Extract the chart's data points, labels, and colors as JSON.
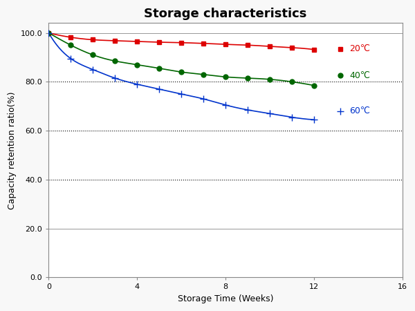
{
  "title": "Storage characteristics",
  "xlabel": "Storage Time (Weeks)",
  "ylabel": "Capacity retention ratio(%)",
  "xlim": [
    0,
    16
  ],
  "ylim": [
    0,
    104
  ],
  "xticks": [
    0,
    4,
    8,
    12,
    16
  ],
  "yticks": [
    0.0,
    20.0,
    40.0,
    60.0,
    80.0,
    100.0
  ],
  "series": [
    {
      "label": "20℃",
      "color": "#dd0000",
      "marker": "s",
      "markersize": 5,
      "x": [
        0,
        1,
        2,
        3,
        4,
        5,
        6,
        7,
        8,
        9,
        10,
        11,
        12
      ],
      "y": [
        100,
        98.2,
        97.2,
        96.8,
        96.5,
        96.2,
        96.0,
        95.7,
        95.3,
        95.0,
        94.5,
        94.0,
        93.2
      ]
    },
    {
      "label": "40℃",
      "color": "#006600",
      "marker": "o",
      "markersize": 5,
      "x": [
        0,
        1,
        2,
        3,
        4,
        5,
        6,
        7,
        8,
        9,
        10,
        11,
        12
      ],
      "y": [
        100,
        95.0,
        91.0,
        88.5,
        87.0,
        85.5,
        84.0,
        83.0,
        82.0,
        81.5,
        81.0,
        80.0,
        78.5
      ]
    },
    {
      "label": "60℃",
      "color": "#0033cc",
      "marker": "+",
      "markersize": 7,
      "x": [
        0,
        1,
        2,
        3,
        4,
        5,
        6,
        7,
        8,
        9,
        10,
        11,
        12
      ],
      "y": [
        100,
        89.5,
        85.0,
        81.5,
        79.0,
        77.0,
        75.0,
        73.0,
        70.5,
        68.5,
        67.0,
        65.5,
        64.5
      ]
    }
  ],
  "dotted_grid_levels": [
    80.0,
    60.0,
    40.0
  ],
  "solid_light_grid_levels": [
    20.0,
    100.0
  ],
  "background_color": "#f8f8f8",
  "plot_bg_color": "#ffffff",
  "title_fontsize": 13,
  "axis_fontsize": 9,
  "tick_fontsize": 8,
  "legend_fontsize": 9
}
